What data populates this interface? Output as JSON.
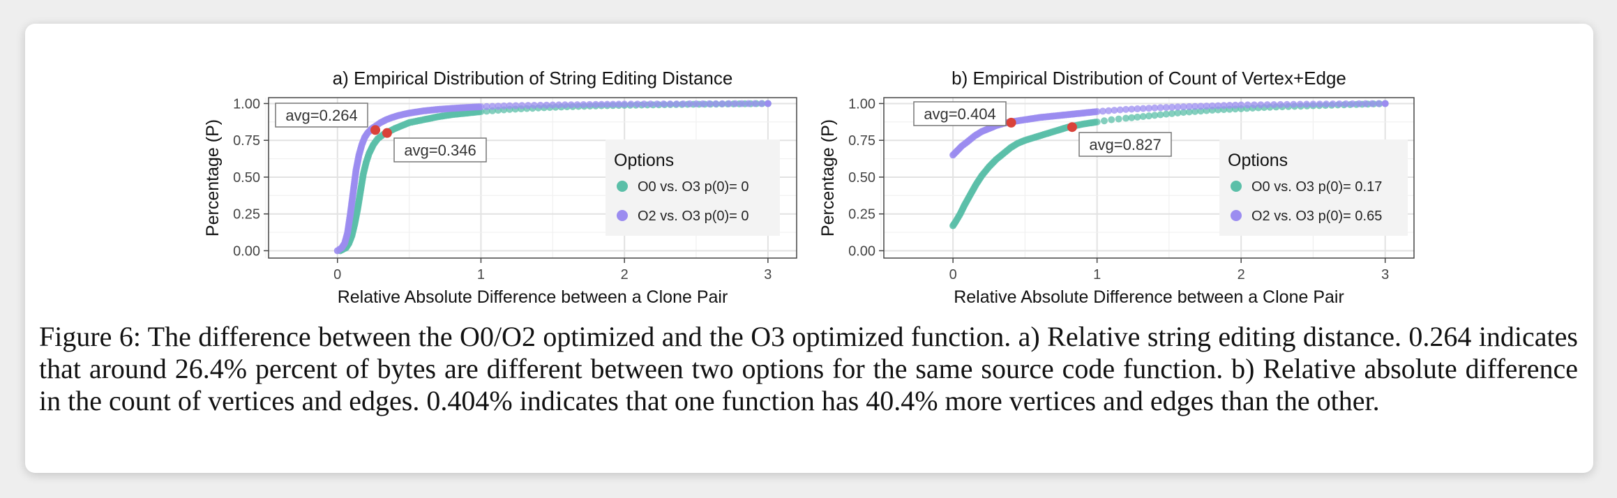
{
  "colors": {
    "o0": "#5bbfa8",
    "o2": "#9b8cf0",
    "avg_point": "#d9423a",
    "panel_bg": "#ffffff",
    "legend_bg": "#f3f3f3"
  },
  "chart_data": [
    {
      "type": "scatter",
      "title": "a) Empirical Distribution of String Editing Distance",
      "xlabel": "Relative Absolute Difference between a Clone Pair",
      "ylabel": "Percentage (P)",
      "xlim": [
        -0.48,
        3.2
      ],
      "ylim": [
        -0.05,
        1.04
      ],
      "xticks": [
        0,
        1,
        2,
        3
      ],
      "xtick_labels": [
        "0",
        "1",
        "2",
        "3"
      ],
      "yticks": [
        0,
        0.25,
        0.5,
        0.75,
        1
      ],
      "ytick_labels": [
        "0.00",
        "0.25",
        "0.50",
        "0.75",
        "1.00"
      ],
      "grid": true,
      "legend_title": "Options",
      "legend_position": "right",
      "series": [
        {
          "name": "O0 vs. O3 p(0)= 0",
          "color_key": "o0",
          "x": [
            0.02,
            0.06,
            0.08,
            0.1,
            0.12,
            0.14,
            0.16,
            0.18,
            0.2,
            0.22,
            0.25,
            0.28,
            0.32,
            0.36,
            0.4,
            0.45,
            0.5,
            0.55,
            0.6,
            0.7,
            0.8,
            0.9,
            1.0,
            1.2,
            1.4,
            1.6,
            1.8,
            2.0,
            2.2,
            2.4,
            2.6,
            2.8,
            3.0
          ],
          "y": [
            0.0,
            0.02,
            0.05,
            0.1,
            0.18,
            0.28,
            0.4,
            0.52,
            0.6,
            0.66,
            0.72,
            0.76,
            0.79,
            0.81,
            0.83,
            0.85,
            0.87,
            0.88,
            0.89,
            0.91,
            0.925,
            0.935,
            0.945,
            0.96,
            0.97,
            0.978,
            0.984,
            0.988,
            0.991,
            0.994,
            0.996,
            0.998,
            1.0
          ]
        },
        {
          "name": "O2 vs. O3 p(0)= 0",
          "color_key": "o2",
          "x": [
            0.0,
            0.03,
            0.05,
            0.07,
            0.09,
            0.11,
            0.13,
            0.15,
            0.17,
            0.19,
            0.21,
            0.24,
            0.27,
            0.3,
            0.34,
            0.38,
            0.43,
            0.5,
            0.6,
            0.7,
            0.8,
            0.9,
            1.0,
            1.2,
            1.5,
            1.8,
            2.0,
            2.5,
            3.0
          ],
          "y": [
            0.0,
            0.02,
            0.05,
            0.12,
            0.25,
            0.4,
            0.55,
            0.65,
            0.72,
            0.77,
            0.8,
            0.83,
            0.85,
            0.87,
            0.89,
            0.905,
            0.92,
            0.935,
            0.95,
            0.96,
            0.967,
            0.973,
            0.978,
            0.985,
            0.99,
            0.994,
            0.996,
            0.998,
            1.0
          ]
        }
      ],
      "annotations": [
        {
          "text": "avg=0.264",
          "x": 0.264,
          "y": 0.82,
          "series": "O2 vs. O3"
        },
        {
          "text": "avg=0.346",
          "x": 0.346,
          "y": 0.8,
          "series": "O0 vs. O3"
        }
      ]
    },
    {
      "type": "scatter",
      "title": "b) Empirical Distribution of Count of Vertex+Edge",
      "xlabel": "Relative Absolute Difference between a Clone Pair",
      "ylabel": "Percentage (P)",
      "xlim": [
        -0.48,
        3.2
      ],
      "ylim": [
        -0.05,
        1.04
      ],
      "xticks": [
        0,
        1,
        2,
        3
      ],
      "xtick_labels": [
        "0",
        "1",
        "2",
        "3"
      ],
      "yticks": [
        0,
        0.25,
        0.5,
        0.75,
        1
      ],
      "ytick_labels": [
        "0.00",
        "0.25",
        "0.50",
        "0.75",
        "1.00"
      ],
      "grid": true,
      "legend_title": "Options",
      "legend_position": "right",
      "series": [
        {
          "name": "O0 vs. O3 p(0)= 0.17",
          "color_key": "o0",
          "x": [
            0.0,
            0.02,
            0.05,
            0.08,
            0.12,
            0.16,
            0.2,
            0.25,
            0.3,
            0.35,
            0.4,
            0.45,
            0.5,
            0.6,
            0.7,
            0.8,
            0.9,
            1.0,
            1.1,
            1.2,
            1.4,
            1.6,
            1.8,
            2.0,
            2.2,
            2.5,
            2.8,
            3.0
          ],
          "y": [
            0.17,
            0.2,
            0.25,
            0.31,
            0.38,
            0.45,
            0.51,
            0.57,
            0.62,
            0.66,
            0.7,
            0.73,
            0.75,
            0.78,
            0.81,
            0.84,
            0.86,
            0.875,
            0.89,
            0.9,
            0.92,
            0.94,
            0.955,
            0.965,
            0.975,
            0.985,
            0.994,
            1.0
          ]
        },
        {
          "name": "O2 vs. O3 p(0)= 0.65",
          "color_key": "o2",
          "x": [
            0.0,
            0.03,
            0.06,
            0.1,
            0.15,
            0.2,
            0.25,
            0.3,
            0.35,
            0.4,
            0.5,
            0.6,
            0.7,
            0.8,
            0.9,
            1.0,
            1.2,
            1.4,
            1.6,
            1.8,
            2.0,
            2.5,
            3.0
          ],
          "y": [
            0.65,
            0.68,
            0.71,
            0.74,
            0.78,
            0.81,
            0.83,
            0.85,
            0.865,
            0.875,
            0.89,
            0.905,
            0.915,
            0.925,
            0.935,
            0.945,
            0.96,
            0.97,
            0.978,
            0.984,
            0.99,
            0.996,
            1.0
          ]
        }
      ],
      "annotations": [
        {
          "text": "avg=0.404",
          "x": 0.404,
          "y": 0.87,
          "series": "O2 vs. O3"
        },
        {
          "text": "avg=0.827",
          "x": 0.827,
          "y": 0.84,
          "series": "O0 vs. O3"
        }
      ]
    }
  ],
  "caption": "Figure 6: The difference between the O0/O2 optimized and the O3 optimized function. a) Relative string editing distance. 0.264 indicates that around 26.4% percent of bytes are different between two options for the same source code function. b) Relative absolute difference in the count of vertices and edges. 0.404% indicates that one function has 40.4% more vertices and edges than the other."
}
